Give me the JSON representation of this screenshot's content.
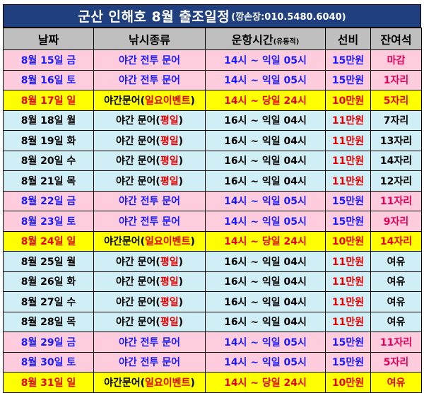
{
  "title": {
    "main": "군산 인해호 8월 출조일정",
    "contact": "(깡손장:010.5480.6040)"
  },
  "headers": {
    "date": "날짜",
    "type": "낚시종류",
    "time_main": "운항시간",
    "time_small": "(유동적)",
    "fee": "선비",
    "seats": "잔여석"
  },
  "rows": [
    {
      "kind": "weekend",
      "date": "8월 15일 금",
      "type_a": "야간 전투 문어",
      "type_b": "",
      "type_c": "",
      "time": "14시 ~ 익일 05시",
      "fee": "15만원",
      "seats": "마감"
    },
    {
      "kind": "weekend",
      "date": "8월 16일 토",
      "type_a": "야간 전투 문어",
      "type_b": "",
      "type_c": "",
      "time": "14시 ~ 익일 05시",
      "fee": "15만원",
      "seats": "1자리"
    },
    {
      "kind": "sunday",
      "date": "8월 17일 일",
      "type_a": "야간문어(",
      "type_b": "일요이벤트",
      "type_c": ")",
      "time": "14시 ~ 당일 24시",
      "fee": "10만원",
      "seats": "5자리"
    },
    {
      "kind": "weekday",
      "date": "8월 18일 월",
      "type_a": "야간 문어(",
      "type_b": "평일",
      "type_c": ")",
      "time": "16시 ~ 익일 04시",
      "fee": "11만원",
      "seats": "7자리"
    },
    {
      "kind": "weekday",
      "date": "8월 19일 화",
      "type_a": "야간 문어(",
      "type_b": "평일",
      "type_c": ")",
      "time": "16시 ~ 익일 04시",
      "fee": "11만원",
      "seats": "13자리"
    },
    {
      "kind": "weekday",
      "date": "8월 20일 수",
      "type_a": "야간 문어(",
      "type_b": "평일",
      "type_c": ")",
      "time": "16시 ~ 익일 04시",
      "fee": "11만원",
      "seats": "14자리"
    },
    {
      "kind": "weekday",
      "date": "8월 21일 목",
      "type_a": "야간 문어(",
      "type_b": "평일",
      "type_c": ")",
      "time": "16시 ~ 익일 04시",
      "fee": "11만원",
      "seats": "12자리"
    },
    {
      "kind": "weekend",
      "date": "8월 22일 금",
      "type_a": "야간 전투 문어",
      "type_b": "",
      "type_c": "",
      "time": "14시 ~ 익일 05시",
      "fee": "15만원",
      "seats": "11자리"
    },
    {
      "kind": "weekend",
      "date": "8월 23일 토",
      "type_a": "야간 전투 문어",
      "type_b": "",
      "type_c": "",
      "time": "14시 ~ 익일 05시",
      "fee": "15만원",
      "seats": "9자리"
    },
    {
      "kind": "sunday",
      "date": "8월 24일 일",
      "type_a": "야간문어(",
      "type_b": "일요이벤트",
      "type_c": ")",
      "time": "14시 ~ 당일 24시",
      "fee": "10만원",
      "seats": "14자리"
    },
    {
      "kind": "weekday",
      "date": "8월 25일 월",
      "type_a": "야간 문어(",
      "type_b": "평일",
      "type_c": ")",
      "time": "16시 ~ 익일 04시",
      "fee": "11만원",
      "seats": "여유"
    },
    {
      "kind": "weekday",
      "date": "8월 26일 화",
      "type_a": "야간 문어(",
      "type_b": "평일",
      "type_c": ")",
      "time": "16시 ~ 익일 04시",
      "fee": "11만원",
      "seats": "여유"
    },
    {
      "kind": "weekday",
      "date": "8월 27일 수",
      "type_a": "야간 문어(",
      "type_b": "평일",
      "type_c": ")",
      "time": "16시 ~ 익일 04시",
      "fee": "11만원",
      "seats": "여유"
    },
    {
      "kind": "weekday",
      "date": "8월 28일 목",
      "type_a": "야간 문어(",
      "type_b": "평일",
      "type_c": ")",
      "time": "16시 ~ 익일 04시",
      "fee": "11만원",
      "seats": "여유"
    },
    {
      "kind": "weekend",
      "date": "8월 29일 금",
      "type_a": "야간 전투 문어",
      "type_b": "",
      "type_c": "",
      "time": "14시 ~ 익일 05시",
      "fee": "15만원",
      "seats": "11자리"
    },
    {
      "kind": "weekend",
      "date": "8월 30일 토",
      "type_a": "야간 전투 문어",
      "type_b": "",
      "type_c": "",
      "time": "14시 ~ 익일 05시",
      "fee": "15만원",
      "seats": "5자리"
    },
    {
      "kind": "sunday",
      "date": "8월 31일 일",
      "type_a": "야간문어(",
      "type_b": "일요이벤트",
      "type_c": ")",
      "time": "14시 ~ 당일 24시",
      "fee": "10만원",
      "seats": "여유"
    }
  ],
  "colors": {
    "title_bg": "#1f3f7f",
    "header_bg": "#bfbfbf",
    "weekend_bg": "#ffccdd",
    "weekday_bg": "#cfeef5",
    "sunday_bg": "#ffff00",
    "blue_text": "#1a1aff",
    "red_text": "#e60000"
  }
}
